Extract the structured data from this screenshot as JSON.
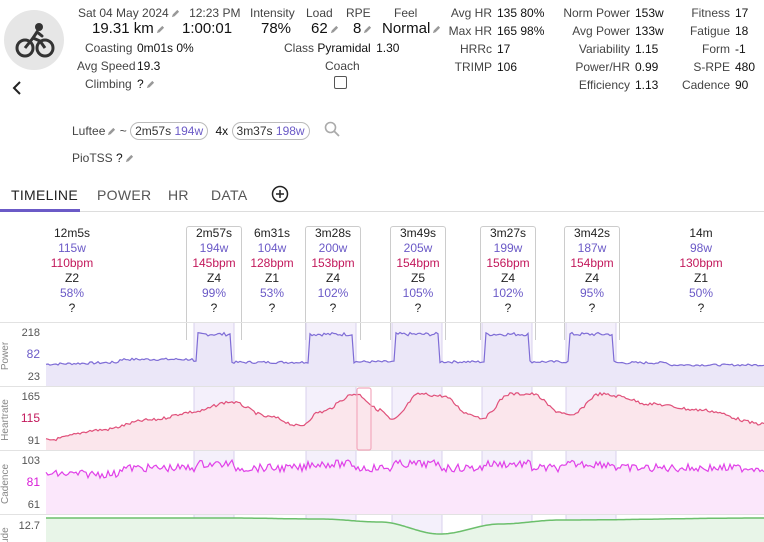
{
  "header": {
    "date": "Sat 04 May 2024",
    "time": "12:23 PM",
    "distance": "19.31 km",
    "duration": "1:00:01",
    "coasting_label": "Coasting",
    "coasting_value": "0m01s 0%",
    "avg_speed_label": "Avg Speed",
    "avg_speed_value": "19.3",
    "climbing_label": "Climbing",
    "climbing_value": "?",
    "intensity_label": "Intensity",
    "intensity_value": "78%",
    "load_label": "Load",
    "load_value": "62",
    "rpe_label": "RPE",
    "rpe_value": "8",
    "feel_label": "Feel",
    "feel_value": "Normal",
    "class_label": "Class",
    "class_value": "Pyramidal",
    "class_score": "1.30",
    "coach_label": "Coach"
  },
  "metrics_mid": [
    {
      "label": "Avg HR",
      "value": "135 80%"
    },
    {
      "label": "Max HR",
      "value": "165 98%"
    },
    {
      "label": "HRRc",
      "value": "17"
    },
    {
      "label": "TRIMP",
      "value": "106"
    }
  ],
  "metrics_right": [
    {
      "label": "Norm Power",
      "value": "153w"
    },
    {
      "label": "Avg Power",
      "value": "133w"
    },
    {
      "label": "Variability",
      "value": "1.15"
    },
    {
      "label": "Power/HR",
      "value": "0.99"
    },
    {
      "label": "Efficiency",
      "value": "1.13"
    }
  ],
  "metrics_far": [
    {
      "label": "Fitness",
      "value": "17"
    },
    {
      "label": "Fatigue",
      "value": "18"
    },
    {
      "label": "Form",
      "value": "-1"
    },
    {
      "label": "S-RPE",
      "value": "480"
    },
    {
      "label": "Cadence",
      "value": "90"
    }
  ],
  "luftee": {
    "label": "Luftee",
    "tilde": "~",
    "chip1_time": "2m57s",
    "chip1_w": "194w",
    "reps": "4x",
    "chip2_time": "3m37s",
    "chip2_w": "198w"
  },
  "piotss": {
    "label": "PioTSS",
    "value": "?"
  },
  "tabs": [
    {
      "label": "TIMELINE"
    },
    {
      "label": "POWER"
    },
    {
      "label": "HR"
    },
    {
      "label": "DATA"
    }
  ],
  "intervals": [
    {
      "dur": "12m5s",
      "w": "115w",
      "bpm": "110bpm",
      "z": "Z2",
      "pct": "58%",
      "q": "?",
      "boxed": false
    },
    {
      "dur": "2m57s",
      "w": "194w",
      "bpm": "145bpm",
      "z": "Z4",
      "pct": "99%",
      "q": "?",
      "boxed": true
    },
    {
      "dur": "6m31s",
      "w": "104w",
      "bpm": "128bpm",
      "z": "Z1",
      "pct": "53%",
      "q": "?",
      "boxed": false
    },
    {
      "dur": "3m28s",
      "w": "200w",
      "bpm": "153bpm",
      "z": "Z4",
      "pct": "102%",
      "q": "?",
      "boxed": true
    },
    {
      "dur": "3m49s",
      "w": "205w",
      "bpm": "154bpm",
      "z": "Z5",
      "pct": "105%",
      "q": "?",
      "boxed": true
    },
    {
      "dur": "3m27s",
      "w": "199w",
      "bpm": "156bpm",
      "z": "Z4",
      "pct": "102%",
      "q": "?",
      "boxed": true
    },
    {
      "dur": "3m42s",
      "w": "187w",
      "bpm": "154bpm",
      "z": "Z4",
      "pct": "95%",
      "q": "?",
      "boxed": true
    },
    {
      "dur": "14m",
      "w": "98w",
      "bpm": "130bpm",
      "z": "Z1",
      "pct": "50%",
      "q": "?",
      "boxed": false
    }
  ],
  "streams": {
    "power": {
      "label": "Power",
      "ticks": [
        "218",
        "82",
        "23"
      ],
      "color": "#7e6cd6"
    },
    "heartrate": {
      "label": "Heartrate",
      "ticks": [
        "165",
        "115",
        "91"
      ],
      "color": "#e0507a"
    },
    "cadence": {
      "label": "Cadence",
      "ticks": [
        "103",
        "81",
        "61"
      ],
      "color": "#e040e8"
    },
    "altitude": {
      "label": "Altitude",
      "ticks": [
        "12.7"
      ],
      "color": "#6cbf6c"
    }
  },
  "colors": {
    "accent": "#6b5ac7",
    "hr": "#c2185b"
  }
}
